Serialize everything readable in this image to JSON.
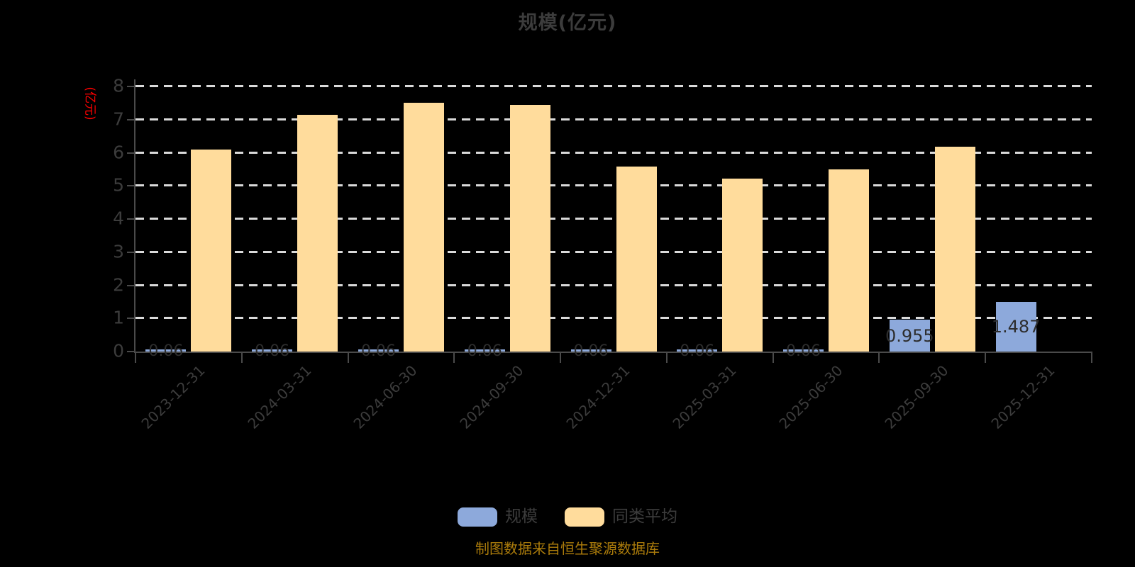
{
  "title": "规模(亿元)",
  "chart_data": {
    "type": "bar",
    "title": "规模(亿元)",
    "ylabel": "(亿元)",
    "ylabel_color": "#ff0000",
    "xlabel": "",
    "ylim": [
      0,
      8
    ],
    "ytick_step": 1,
    "grid": true,
    "grid_style": "dashed",
    "legend_position": "bottom",
    "categories": [
      "2023-12-31",
      "2024-03-31",
      "2024-06-30",
      "2024-09-30",
      "2024-12-31",
      "2025-03-31",
      "2025-06-30",
      "2025-09-30",
      "2025-12-31"
    ],
    "series": [
      {
        "name": "规模",
        "color": "#8da9db",
        "values": [
          0.06,
          0.06,
          0.06,
          0.06,
          0.06,
          0.06,
          0.06,
          0.955,
          1.487
        ],
        "labels": [
          "0.06",
          "0.06",
          "0.06",
          "0.06",
          "0.06",
          "0.06",
          "0.06",
          "0.955",
          "1.487"
        ],
        "show_labels": true
      },
      {
        "name": "同类平均",
        "color": "#ffdc9c",
        "values": [
          6.1,
          7.14,
          7.51,
          7.44,
          5.58,
          5.23,
          5.49,
          6.18,
          null
        ],
        "labels": [],
        "show_labels": false
      }
    ]
  },
  "footer": {
    "text": "制图数据来自恒生聚源数据库"
  },
  "colors": {
    "background": "#000000",
    "axis": "#4a4a4a",
    "gridline": "#dadada",
    "text_dark": "#3c3c3c",
    "bar_label": "#2d2d2d",
    "y_unit_label": "#ff0000",
    "footer_text": "#ac7c0b",
    "series_scale": "#8da9db",
    "series_peer_average": "#ffdc9c"
  }
}
